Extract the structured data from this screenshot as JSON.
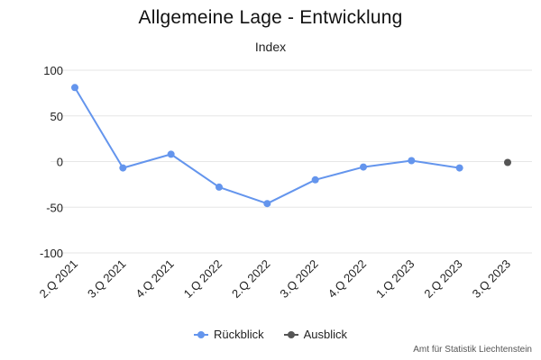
{
  "chart_data": {
    "type": "line",
    "title": "Allgemeine Lage - Entwicklung",
    "subtitle": "Index",
    "categories": [
      "2.Q 2021",
      "3.Q 2021",
      "4.Q 2021",
      "1.Q 2022",
      "2.Q 2022",
      "3.Q 2022",
      "4.Q 2022",
      "1.Q 2023",
      "2.Q 2023",
      "3.Q 2023"
    ],
    "ylim": [
      -100,
      100
    ],
    "yticks": [
      100,
      50,
      0,
      -50,
      -100
    ],
    "grid": true,
    "legend_position": "bottom-center",
    "series": [
      {
        "name": "Rückblick",
        "color": "#6495ED",
        "values": [
          81,
          -7,
          8,
          -28,
          -46,
          -20,
          -6,
          1,
          -7,
          null
        ]
      },
      {
        "name": "Ausblick",
        "color": "#555555",
        "values": [
          null,
          null,
          null,
          null,
          null,
          null,
          null,
          null,
          null,
          -1
        ]
      }
    ]
  },
  "credits": "Amt für Statistik Liechtenstein"
}
